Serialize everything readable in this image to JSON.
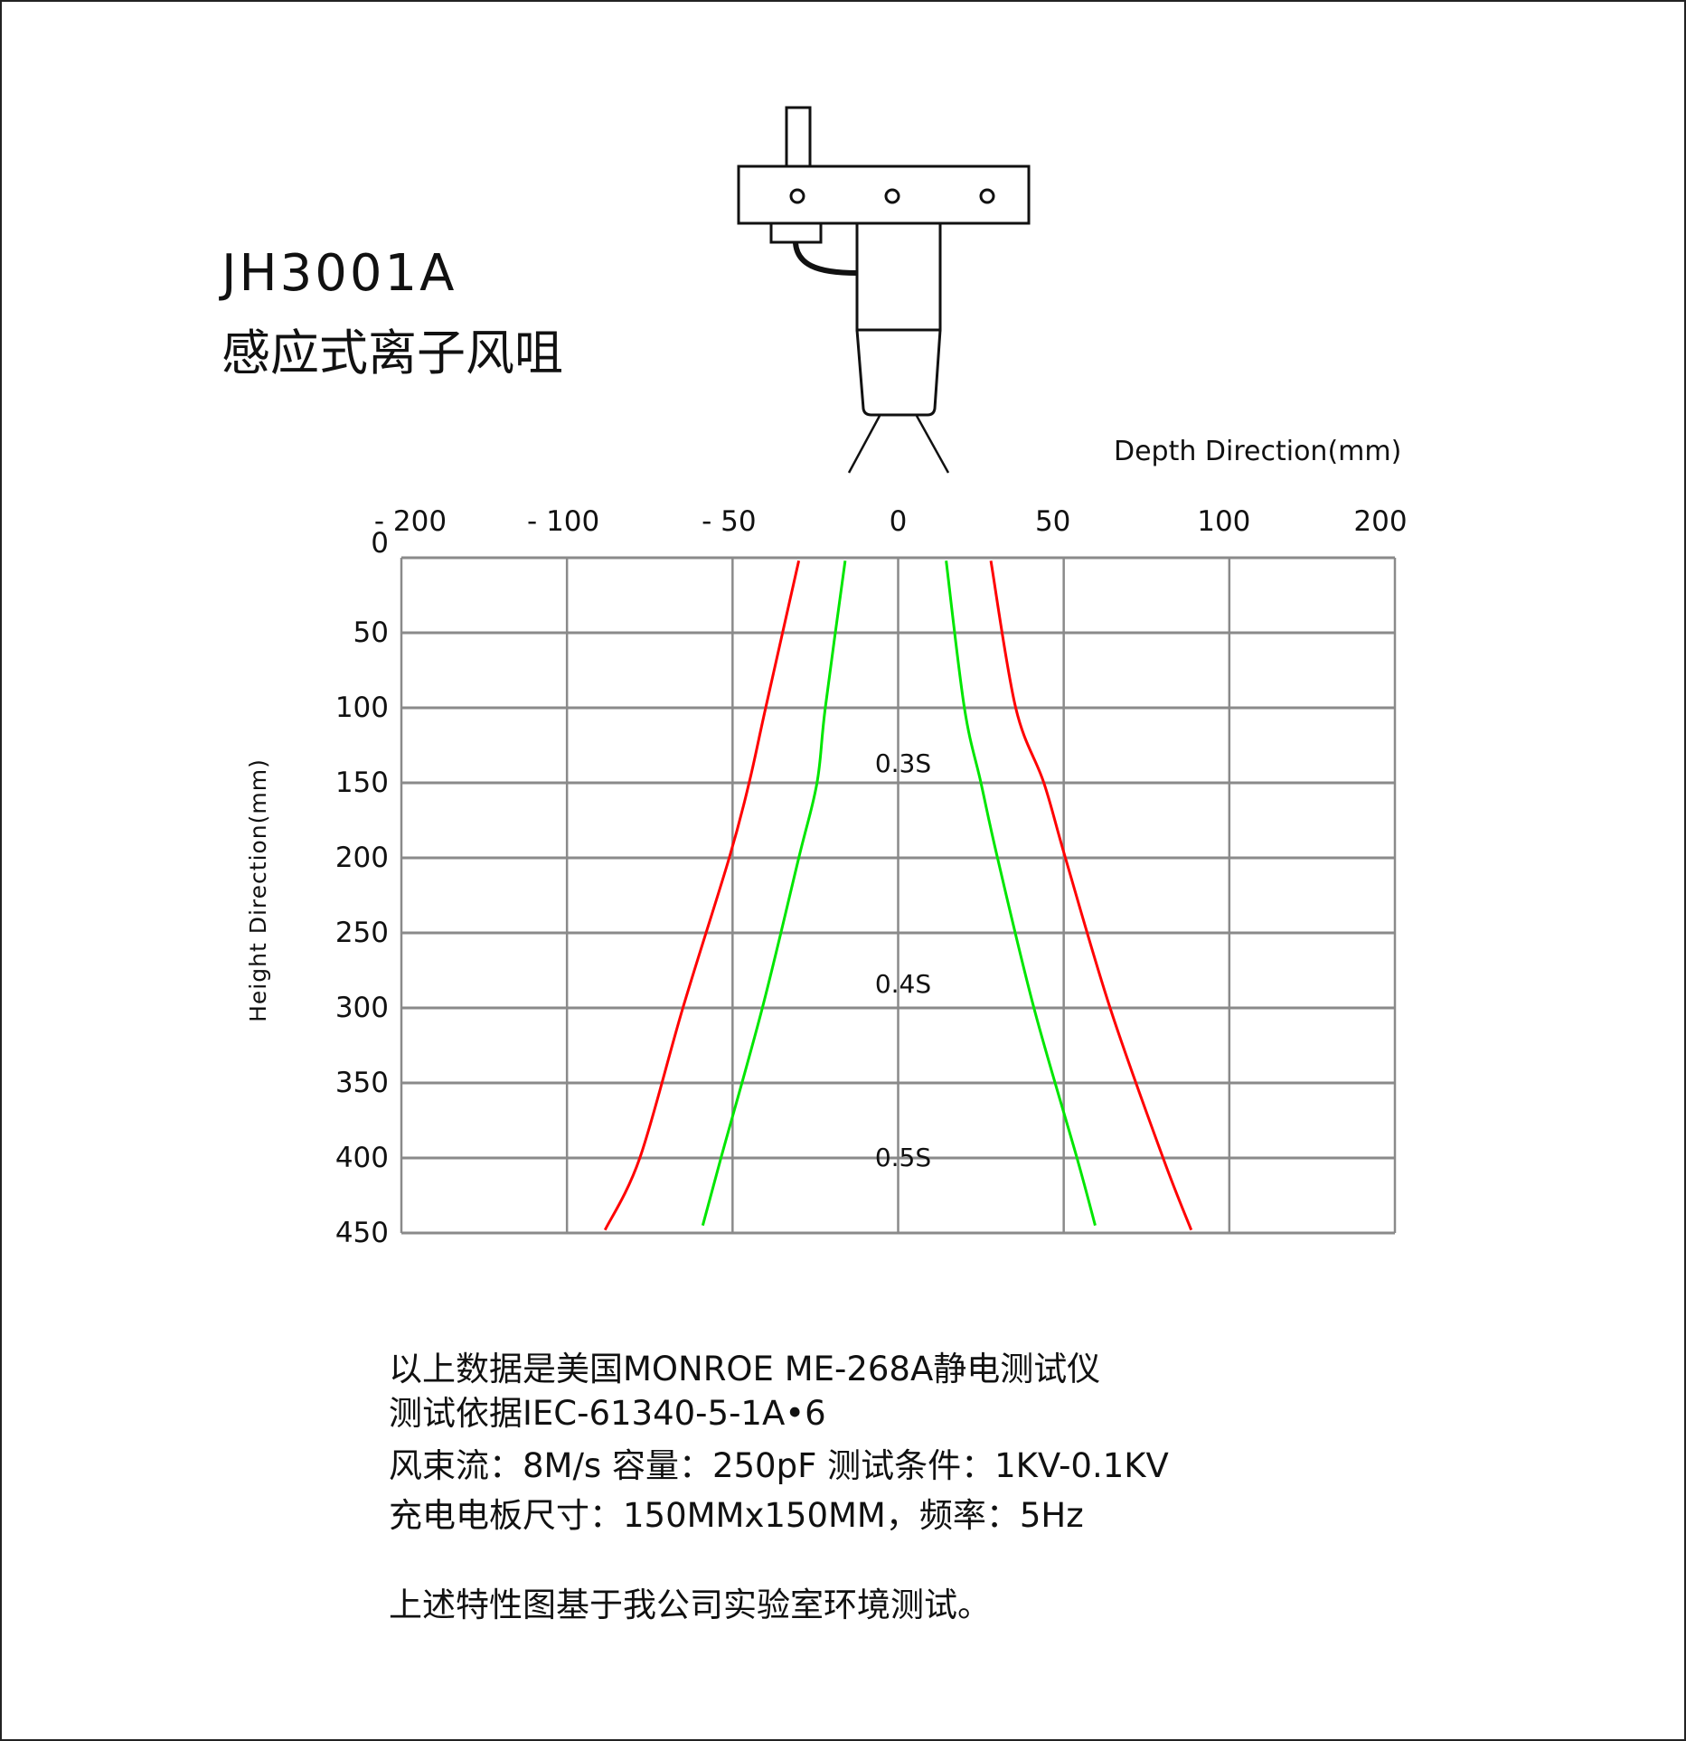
{
  "header": {
    "model": "JH3001A",
    "product_name": "感应式离子风咀"
  },
  "device_icon": "ionizing-air-nozzle-diagram",
  "chart_data": {
    "type": "line",
    "xlabel": "Depth Direction(mm)",
    "ylabel": "Height Direction(mm)",
    "x_tick_labels": [
      "- 200",
      "- 100",
      "- 50",
      "0",
      "50",
      "100",
      "200"
    ],
    "x_ticks": [
      -200,
      -100,
      -50,
      0,
      50,
      100,
      200
    ],
    "x_axis_position": "top",
    "y_tick_labels": [
      "0",
      "50",
      "100",
      "150",
      "200",
      "250",
      "300",
      "350",
      "400",
      "450"
    ],
    "ylim": [
      0,
      450
    ],
    "y_inverted": true,
    "grid": true,
    "annotations": [
      "0.3S",
      "0.4S",
      "0.5S"
    ],
    "series": [
      {
        "color": "#ff0000",
        "points": [
          [
            -30,
            2
          ],
          [
            -40,
            100
          ],
          [
            -45,
            150
          ],
          [
            -51,
            200
          ],
          [
            -65,
            300
          ],
          [
            -78,
            400
          ],
          [
            -88.5,
            448
          ]
        ]
      },
      {
        "color": "#00e600",
        "points": [
          [
            -16,
            2
          ],
          [
            -22,
            100
          ],
          [
            -24.5,
            150
          ],
          [
            -30,
            200
          ],
          [
            -41,
            300
          ],
          [
            -53.5,
            400
          ],
          [
            -59,
            445
          ]
        ]
      },
      {
        "color": "#00e600",
        "points": [
          [
            14.5,
            2
          ],
          [
            20,
            100
          ],
          [
            25,
            150
          ],
          [
            30,
            200
          ],
          [
            41,
            300
          ],
          [
            54,
            400
          ],
          [
            59.5,
            445
          ]
        ]
      },
      {
        "color": "#ff0000",
        "points": [
          [
            28,
            2
          ],
          [
            35.5,
            100
          ],
          [
            44,
            150
          ],
          [
            50.5,
            200
          ],
          [
            64,
            300
          ],
          [
            80,
            400
          ],
          [
            88.5,
            448
          ]
        ]
      }
    ]
  },
  "notes": [
    "以上数据是美国MONROE ME-268A静电测试仪",
    "测试依据IEC-61340-5-1A•6",
    "风束流：8M/s  容量：250pF  测试条件：1KV-0.1KV",
    "充电电板尺寸：150MMx150MM，频率：5Hz",
    "上述特性图基于我公司实验室环境测试。"
  ]
}
